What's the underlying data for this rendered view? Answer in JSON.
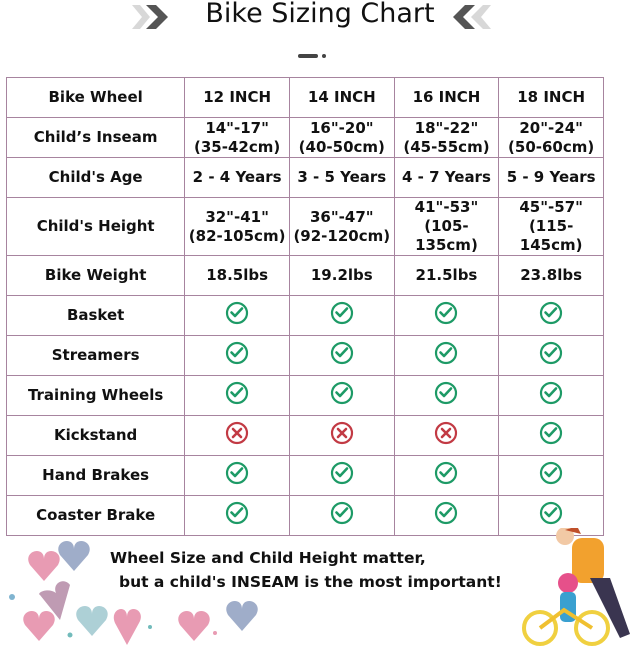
{
  "title": "Bike Sizing Chart",
  "colors": {
    "check": "#1d9a66",
    "cross": "#c23a44",
    "grid": "#a7849f"
  },
  "table": {
    "rows": [
      {
        "label": "Bike Wheel",
        "cells": [
          "12 INCH",
          "14 INCH",
          "16 INCH",
          "18 INCH"
        ]
      },
      {
        "label": "Child’s Inseam",
        "cells": [
          "14\"-17\"\n(35-42cm)",
          "16\"-20\"\n(40-50cm)",
          "18\"-22\"\n(45-55cm)",
          "20\"-24\"\n(50-60cm)"
        ]
      },
      {
        "label": "Child's Age",
        "cells": [
          "2 - 4 Years",
          "3 - 5 Years",
          "4 - 7 Years",
          "5 - 9 Years"
        ]
      },
      {
        "label": "Child's Height",
        "cells": [
          "32\"-41\"\n(82-105cm)",
          "36\"-47\"\n(92-120cm)",
          "41\"-53\"\n(105-135cm)",
          "45\"-57\"\n(115-145cm)"
        ]
      },
      {
        "label": "Bike Weight",
        "cells": [
          "18.5lbs",
          "19.2lbs",
          "21.5lbs",
          "23.8lbs"
        ]
      },
      {
        "label": "Basket",
        "icons": [
          "check",
          "check",
          "check",
          "check"
        ]
      },
      {
        "label": "Streamers",
        "icons": [
          "check",
          "check",
          "check",
          "check"
        ]
      },
      {
        "label": "Training Wheels",
        "icons": [
          "check",
          "check",
          "check",
          "check"
        ]
      },
      {
        "label": "Kickstand",
        "icons": [
          "cross",
          "cross",
          "cross",
          "check"
        ]
      },
      {
        "label": "Hand Brakes",
        "icons": [
          "check",
          "check",
          "check",
          "check"
        ]
      },
      {
        "label": "Coaster Brake",
        "icons": [
          "check",
          "check",
          "check",
          "check"
        ]
      }
    ]
  },
  "caption": {
    "line1": "Wheel Size and Child Height matter,",
    "line2": "but a child's INSEAM is the most important!"
  }
}
